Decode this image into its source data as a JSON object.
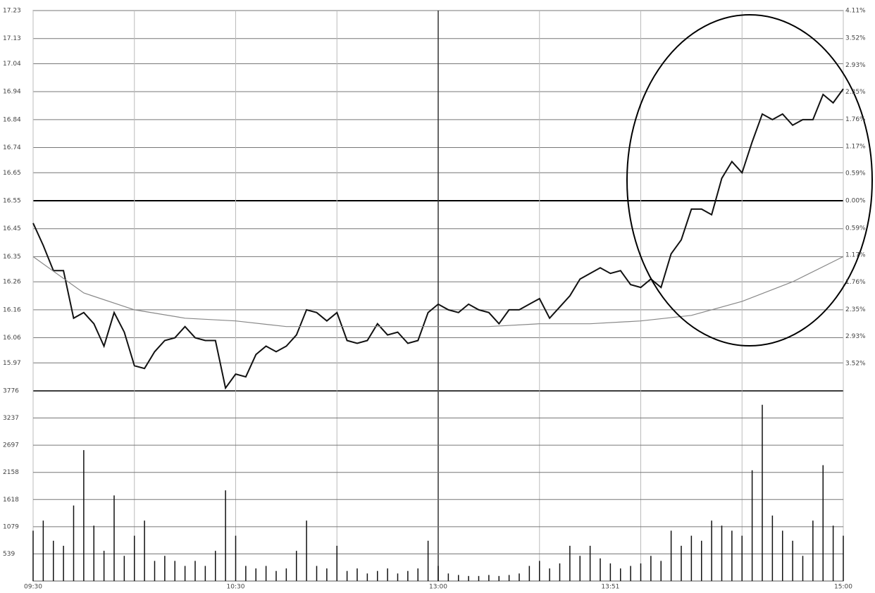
{
  "chart_data": [
    {
      "type": "line",
      "xlim": [
        0,
        240
      ],
      "xticks": [
        {
          "value": 0,
          "label": "09:30"
        },
        {
          "value": 60,
          "label": "10:30"
        },
        {
          "value": 120,
          "label": "13:00"
        },
        {
          "value": 171,
          "label": "13:51"
        },
        {
          "value": 240,
          "label": "15:00"
        }
      ],
      "vgrid_step": 30,
      "bold_x": 120,
      "bold_y": 16.55,
      "ylim": [
        15.87,
        17.23
      ],
      "yticks": [
        17.23,
        17.13,
        17.04,
        16.94,
        16.84,
        16.74,
        16.65,
        16.55,
        16.45,
        16.35,
        16.26,
        16.16,
        16.06,
        15.97
      ],
      "y2lim": [
        -4.11,
        4.11
      ],
      "y2ticks": [
        {
          "value": 4.11,
          "label": "4.11%"
        },
        {
          "value": 3.52,
          "label": "3.52%"
        },
        {
          "value": 2.93,
          "label": "2.93%"
        },
        {
          "value": 2.35,
          "label": "2.35%"
        },
        {
          "value": 1.76,
          "label": "1.76%"
        },
        {
          "value": 1.17,
          "label": "1.17%"
        },
        {
          "value": 0.59,
          "label": "0.59%"
        },
        {
          "value": 0,
          "label": "0.00%"
        },
        {
          "value": -0.59,
          "label": "0.59%"
        },
        {
          "value": -1.17,
          "label": "1.17%"
        },
        {
          "value": -1.76,
          "label": "1.76%"
        },
        {
          "value": -2.35,
          "label": "2.35%"
        },
        {
          "value": -2.93,
          "label": "2.93%"
        },
        {
          "value": -3.52,
          "label": "3.52%"
        }
      ],
      "series": [
        {
          "color": "#111111",
          "x": [
            0,
            3,
            6,
            9,
            12,
            15,
            18,
            21,
            24,
            27,
            30,
            33,
            36,
            39,
            42,
            45,
            48,
            51,
            54,
            57,
            60,
            63,
            66,
            69,
            72,
            75,
            78,
            81,
            84,
            87,
            90,
            93,
            96,
            99,
            102,
            105,
            108,
            111,
            114,
            117,
            120,
            123,
            126,
            129,
            132,
            135,
            138,
            141,
            144,
            147,
            150,
            153,
            156,
            159,
            162,
            165,
            168,
            171,
            174,
            177,
            180,
            183,
            186,
            189,
            192,
            195,
            198,
            201,
            204,
            207,
            210,
            213,
            216,
            219,
            222,
            225,
            228,
            231,
            234,
            237,
            240
          ],
          "values": [
            16.47,
            16.39,
            16.3,
            16.3,
            16.13,
            16.15,
            16.11,
            16.03,
            16.15,
            16.08,
            15.96,
            15.95,
            16.01,
            16.05,
            16.06,
            16.1,
            16.06,
            16.05,
            16.05,
            15.88,
            15.93,
            15.92,
            16.0,
            16.03,
            16.01,
            16.03,
            16.07,
            16.16,
            16.15,
            16.12,
            16.15,
            16.05,
            16.04,
            16.05,
            16.11,
            16.07,
            16.08,
            16.04,
            16.05,
            16.15,
            16.18,
            16.16,
            16.15,
            16.18,
            16.16,
            16.15,
            16.11,
            16.16,
            16.16,
            16.18,
            16.2,
            16.13,
            16.17,
            16.21,
            16.27,
            16.29,
            16.31,
            16.29,
            16.3,
            16.25,
            16.24,
            16.27,
            16.24,
            16.36,
            16.41,
            16.52,
            16.52,
            16.5,
            16.63,
            16.69,
            16.65,
            16.76,
            16.86,
            16.84,
            16.86,
            16.82,
            16.84,
            16.84,
            16.93,
            16.9,
            16.95
          ]
        },
        {
          "color": "#888888",
          "x": [
            0,
            15,
            30,
            45,
            60,
            75,
            90,
            105,
            120,
            135,
            150,
            165,
            180,
            195,
            210,
            225,
            240
          ],
          "values": [
            16.35,
            16.22,
            16.16,
            16.13,
            16.12,
            16.1,
            16.1,
            16.1,
            16.1,
            16.1,
            16.11,
            16.11,
            16.12,
            16.14,
            16.19,
            16.26,
            16.35
          ]
        }
      ]
    },
    {
      "type": "bar",
      "color": "#111111",
      "xlim": [
        0,
        240
      ],
      "ylim": [
        0,
        3776
      ],
      "yticks": [
        3776,
        3237,
        2697,
        2158,
        1618,
        1079,
        539
      ],
      "x": [
        0,
        3,
        6,
        9,
        12,
        15,
        18,
        21,
        24,
        27,
        30,
        33,
        36,
        39,
        42,
        45,
        48,
        51,
        54,
        57,
        60,
        63,
        66,
        69,
        72,
        75,
        78,
        81,
        84,
        87,
        90,
        93,
        96,
        99,
        102,
        105,
        108,
        111,
        114,
        117,
        120,
        123,
        126,
        129,
        132,
        135,
        138,
        141,
        144,
        147,
        150,
        153,
        156,
        159,
        162,
        165,
        168,
        171,
        174,
        177,
        180,
        183,
        186,
        189,
        192,
        195,
        198,
        201,
        204,
        207,
        210,
        213,
        216,
        219,
        222,
        225,
        228,
        231,
        234,
        237,
        240
      ],
      "values": [
        1000,
        1200,
        800,
        700,
        1500,
        2600,
        1100,
        600,
        1700,
        500,
        900,
        1200,
        400,
        500,
        400,
        300,
        400,
        300,
        600,
        1800,
        900,
        300,
        250,
        300,
        200,
        250,
        600,
        1200,
        300,
        250,
        700,
        200,
        250,
        150,
        200,
        250,
        150,
        200,
        250,
        800,
        300,
        150,
        120,
        100,
        100,
        120,
        100,
        120,
        150,
        300,
        400,
        250,
        350,
        700,
        500,
        700,
        450,
        350,
        250,
        300,
        350,
        500,
        400,
        1000,
        700,
        900,
        800,
        1200,
        1100,
        1000,
        900,
        2200,
        3500,
        1300,
        1000,
        800,
        500,
        1200,
        2300,
        1100,
        900
      ]
    }
  ]
}
